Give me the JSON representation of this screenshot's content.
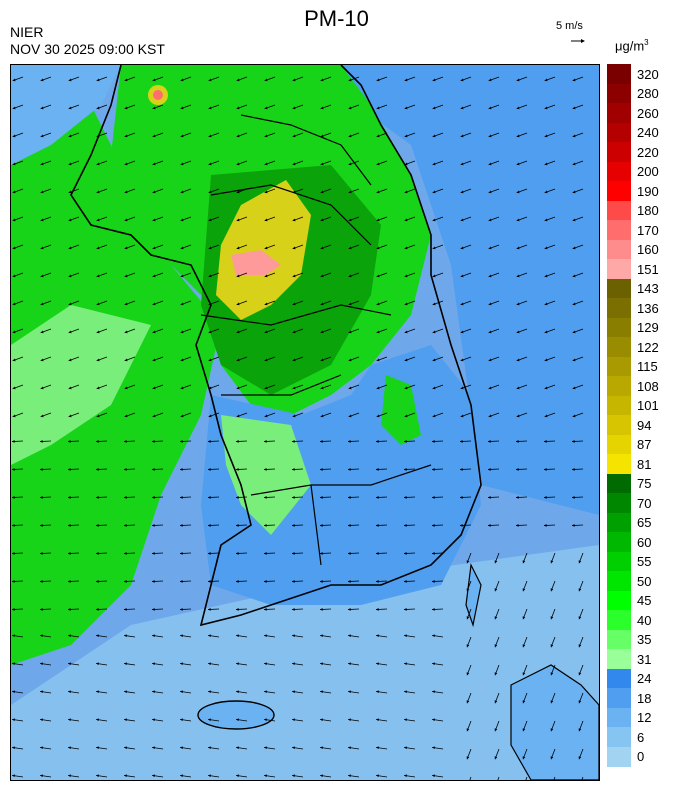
{
  "header": {
    "title": "PM-10",
    "agency": "NIER",
    "timestamp": "NOV 30 2025 09:00 KST",
    "wind_reference": "5 m/s",
    "unit_base": "μg/m",
    "unit_exp": "3"
  },
  "legend": {
    "labels": [
      "320",
      "280",
      "260",
      "240",
      "220",
      "200",
      "190",
      "180",
      "170",
      "160",
      "151",
      "143",
      "136",
      "129",
      "122",
      "115",
      "108",
      "101",
      "94",
      "87",
      "81",
      "75",
      "70",
      "65",
      "60",
      "55",
      "50",
      "45",
      "40",
      "35",
      "31",
      "24",
      "18",
      "12",
      "6",
      "0"
    ],
    "colors": [
      "#7a0000",
      "#8c0000",
      "#a00000",
      "#b40000",
      "#cc0000",
      "#e60000",
      "#ff0000",
      "#ff4a4a",
      "#ff6d6d",
      "#ff8c8c",
      "#ffa8a8",
      "#6b6100",
      "#7a6f00",
      "#8a7e00",
      "#998c00",
      "#a89a00",
      "#b8a800",
      "#c7b600",
      "#d6c500",
      "#e6d400",
      "#f5e400",
      "#006b00",
      "#008700",
      "#00a000",
      "#00b800",
      "#00d000",
      "#00e600",
      "#00ff00",
      "#2bff2b",
      "#66ff66",
      "#99ff99",
      "#3388ee",
      "#4f9ef0",
      "#6ab2f2",
      "#86c4f2",
      "#a2d4f2"
    ]
  },
  "colors": {
    "sea": "#6fa8ea",
    "low": "#5aa0ea",
    "green": "#18d418",
    "light_green": "#7aee7a",
    "dark_green": "#0aa40a",
    "yellow": "#d8d11a",
    "pink": "#ff9a9a"
  }
}
